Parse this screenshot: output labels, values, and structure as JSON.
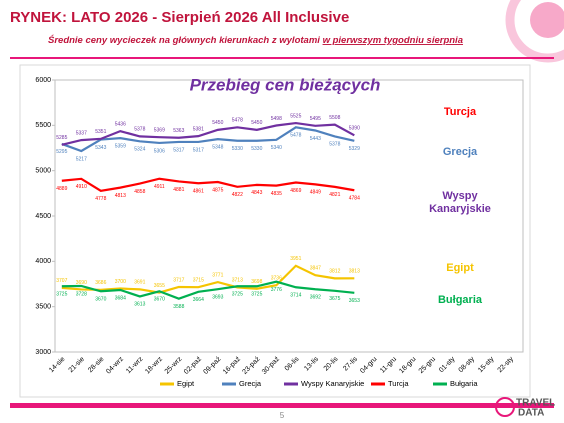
{
  "header": {
    "title": "RYNEK: LATO 2026 - Sierpień 2026 All Inclusive",
    "subtitle": "Średnie ceny wycieczek na głównych kierunkach z wylotami",
    "subtitle_underlined": "w pierwszym tygodniu sierpnia"
  },
  "chart_data": {
    "type": "line",
    "title": "Przebieg cen bieżących",
    "categories": [
      "14-sie",
      "21-sie",
      "28-sie",
      "04-wrz",
      "11-wrz",
      "18-wrz",
      "25-wrz",
      "02-paź",
      "09-paź",
      "16-paź",
      "23-paź",
      "30-paź",
      "06-lis",
      "13-lis",
      "20-lis",
      "27-lis",
      "04-gru",
      "11-gru",
      "18-gru",
      "25-gru",
      "01-sty",
      "08-sty",
      "15-sty",
      "22-sty"
    ],
    "series": [
      {
        "name": "Egipt",
        "color": "#f5c400",
        "values": [
          3707,
          3690,
          3686,
          3700,
          3691,
          3655,
          3717,
          3715,
          3771,
          3713,
          3698,
          3736,
          3951,
          3847,
          3812,
          3813,
          null,
          null,
          null,
          null,
          null,
          null,
          null,
          null
        ]
      },
      {
        "name": "Grecja",
        "color": "#4f81bd",
        "values": [
          5295,
          5217,
          5343,
          5359,
          5324,
          5306,
          5317,
          5317,
          5348,
          5330,
          5330,
          5340,
          5478,
          5443,
          5378,
          5329,
          null,
          null,
          null,
          null,
          null,
          null,
          null,
          null
        ]
      },
      {
        "name": "Wyspy Kanaryjskie",
        "color": "#7030a0",
        "values": [
          5285,
          5337,
          5351,
          5436,
          5378,
          5369,
          5363,
          5381,
          5450,
          5478,
          5450,
          5498,
          5525,
          5495,
          5508,
          5390,
          null,
          null,
          null,
          null,
          null,
          null,
          null,
          null
        ]
      },
      {
        "name": "Turcja",
        "color": "#ff0000",
        "values": [
          4889,
          4910,
          4778,
          4813,
          4858,
          4911,
          4881,
          4861,
          4875,
          4822,
          4843,
          4835,
          4869,
          4849,
          4821,
          4784,
          null,
          null,
          null,
          null,
          null,
          null,
          null,
          null
        ]
      },
      {
        "name": "Bułgaria",
        "color": "#00b050",
        "values": [
          3725,
          3728,
          3670,
          3684,
          3613,
          3670,
          3588,
          3664,
          3693,
          3725,
          3725,
          3776,
          3714,
          3692,
          3675,
          3653,
          null,
          null,
          null,
          null,
          null,
          null,
          null,
          null
        ]
      }
    ],
    "ylim": [
      3000,
      6000
    ],
    "yticks": [
      3000,
      3500,
      4000,
      4500,
      5000,
      5500,
      6000
    ],
    "legend": "bottom"
  },
  "footer": {
    "page": "5",
    "logo_top": "TRAVEL",
    "logo_bottom": "DATA"
  }
}
